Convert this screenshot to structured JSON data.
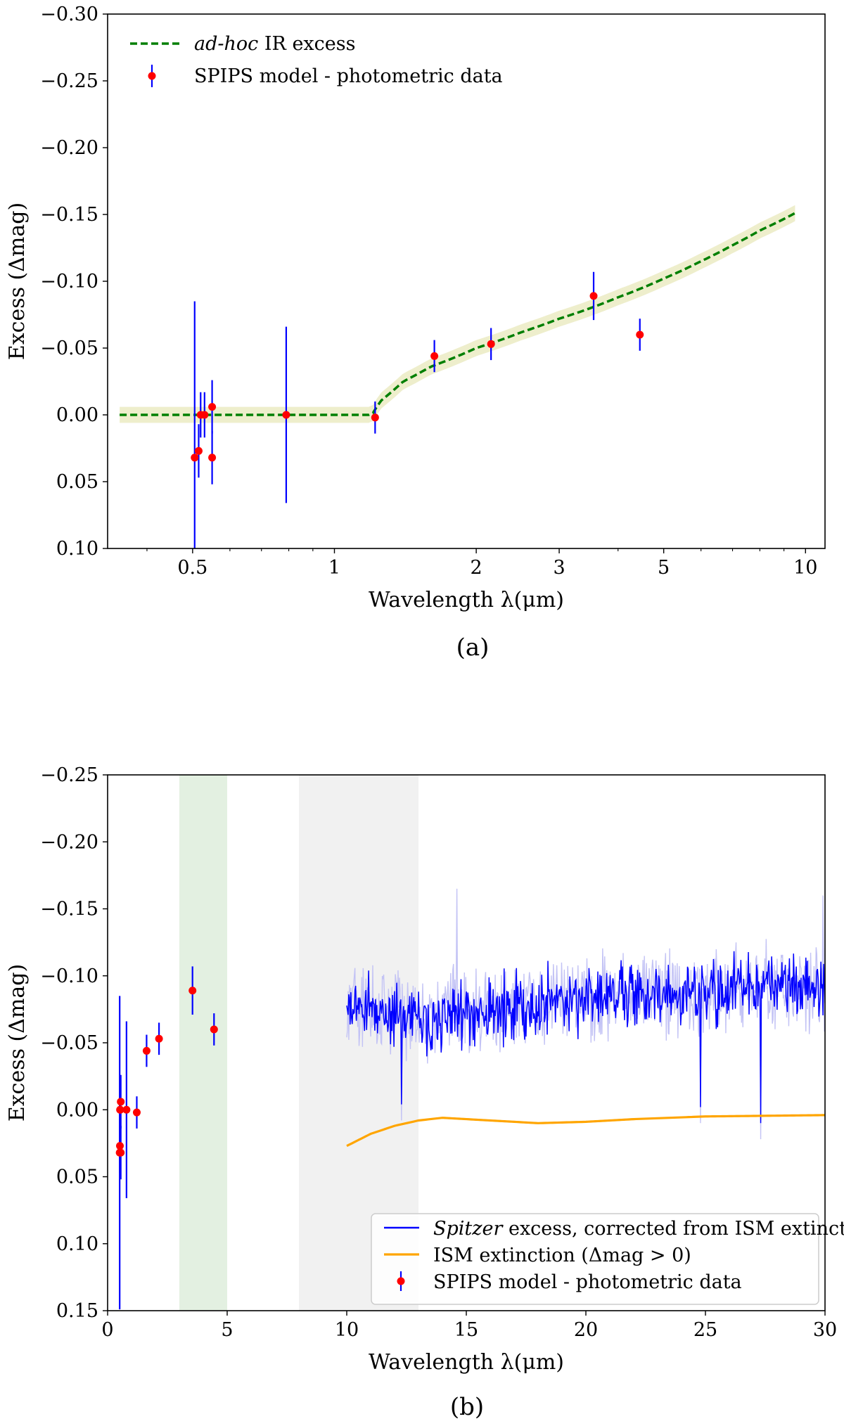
{
  "chart_data": [
    {
      "panel": "a",
      "caption": "(a)",
      "type": "scatter",
      "xscale": "log",
      "xlabel": "Wavelength λ(μm)",
      "ylabel": "Excess (Δmag)",
      "xlim": [
        0.33,
        11.0
      ],
      "ylim": [
        0.1,
        -0.3
      ],
      "y_inverted": true,
      "xticks": [
        0.5,
        1,
        2,
        3,
        5,
        10
      ],
      "xtick_labels": [
        "0.5",
        "1",
        "2",
        "3",
        "5",
        "10"
      ],
      "yticks": [
        -0.3,
        -0.25,
        -0.2,
        -0.15,
        -0.1,
        -0.05,
        0.0,
        0.05,
        0.1
      ],
      "ytick_labels": [
        "−0.30",
        "−0.25",
        "−0.20",
        "−0.15",
        "−0.10",
        "−0.05",
        "0.00",
        "0.05",
        "0.10"
      ],
      "legend_position": "top-left",
      "legend": [
        {
          "label_italic": "ad-hoc",
          "label": " IR excess",
          "style": "dashed-line",
          "color": "#007f00"
        },
        {
          "label": "SPIPS model - photometric data",
          "style": "errorbar-point",
          "color": "#ff0000",
          "errcolor": "#0000ff"
        }
      ],
      "model_curve": {
        "name": "ad-hoc IR excess",
        "color": "#007f00",
        "band_color": "#eeeecc",
        "band_halfwidth": 0.006,
        "x": [
          0.35,
          0.5,
          0.8,
          1.0,
          1.2,
          1.25,
          1.4,
          1.6,
          2.0,
          2.5,
          3.0,
          4.0,
          5.0,
          6.0,
          7.0,
          8.0,
          9.5
        ],
        "y": [
          0.0,
          0.0,
          0.0,
          0.0,
          0.0,
          -0.01,
          -0.025,
          -0.036,
          -0.05,
          -0.062,
          -0.072,
          -0.088,
          -0.102,
          -0.115,
          -0.127,
          -0.138,
          -0.151
        ]
      },
      "points": {
        "name": "SPIPS model - photometric data",
        "x": [
          0.505,
          0.515,
          0.52,
          0.53,
          0.55,
          0.55,
          0.79,
          1.22,
          1.63,
          2.15,
          3.55,
          4.45
        ],
        "y": [
          0.032,
          0.027,
          0.0,
          0.0,
          -0.006,
          0.032,
          0.0,
          0.002,
          -0.044,
          -0.053,
          -0.089,
          -0.06
        ],
        "err": [
          0.117,
          0.02,
          0.017,
          0.017,
          0.02,
          0.02,
          0.066,
          0.012,
          0.012,
          0.012,
          0.018,
          0.012
        ]
      }
    },
    {
      "panel": "b",
      "caption": "(b)",
      "type": "line",
      "xscale": "linear",
      "xlabel": "Wavelength λ(μm)",
      "ylabel": "Excess (Δmag)",
      "xlim": [
        0,
        30
      ],
      "ylim": [
        0.15,
        -0.25
      ],
      "y_inverted": true,
      "xticks": [
        0,
        5,
        10,
        15,
        20,
        25,
        30
      ],
      "xtick_labels": [
        "0",
        "5",
        "10",
        "15",
        "20",
        "25",
        "30"
      ],
      "yticks": [
        -0.25,
        -0.2,
        -0.15,
        -0.1,
        -0.05,
        0.0,
        0.05,
        0.1,
        0.15
      ],
      "ytick_labels": [
        "−0.25",
        "−0.20",
        "−0.15",
        "−0.10",
        "−0.05",
        "0.00",
        "0.05",
        "0.10",
        "0.15"
      ],
      "legend_position": "bottom-right",
      "shaded_regions": [
        {
          "x": [
            3,
            5
          ],
          "color": "#e3f0e1"
        },
        {
          "x": [
            8,
            13
          ],
          "color": "#f1f1f1"
        }
      ],
      "legend": [
        {
          "label_italic": "Spitzer",
          "label": " excess, corrected from ISM extinction",
          "style": "line",
          "color": "#0000ff"
        },
        {
          "label": "ISM extinction (Δmag > 0)",
          "style": "line",
          "color": "#ffa500"
        },
        {
          "label": "SPIPS model - photometric data",
          "style": "errorbar-point",
          "color": "#ff0000",
          "errcolor": "#0000ff"
        }
      ],
      "spitzer_excess": {
        "name": "Spitzer excess, corrected from ISM extinction",
        "color": "#0000ff",
        "band_color": "#c3c3f5",
        "x_range": [
          10.0,
          30.0
        ],
        "n_points": 700,
        "trend_x": [
          10,
          13,
          15,
          17,
          19,
          21,
          23,
          25,
          27,
          30
        ],
        "trend_y": [
          -0.08,
          -0.068,
          -0.072,
          -0.075,
          -0.082,
          -0.085,
          -0.088,
          -0.09,
          -0.092,
          -0.092
        ],
        "noise_amplitude": 0.012,
        "spike_minima": [
          [
            14.6,
            -0.165
          ],
          [
            27.3,
            -0.155
          ],
          [
            29.9,
            -0.16
          ]
        ],
        "spike_maxima": [
          [
            27.3,
            0.022
          ],
          [
            24.8,
            0.01
          ],
          [
            12.3,
            0.008
          ]
        ]
      },
      "ism_extinction": {
        "name": "ISM extinction (Δmag > 0)",
        "color": "#ffa500",
        "x": [
          10,
          11,
          12,
          13,
          14,
          16,
          18,
          20,
          22,
          25,
          30
        ],
        "y": [
          0.027,
          0.018,
          0.012,
          0.008,
          0.006,
          0.008,
          0.01,
          0.009,
          0.007,
          0.005,
          0.004
        ]
      },
      "points": {
        "name": "SPIPS model - photometric data",
        "x": [
          0.505,
          0.515,
          0.52,
          0.53,
          0.55,
          0.55,
          0.79,
          1.22,
          1.63,
          2.15,
          3.55,
          4.45
        ],
        "y": [
          0.032,
          0.027,
          0.0,
          0.0,
          -0.006,
          0.032,
          0.0,
          0.002,
          -0.044,
          -0.053,
          -0.089,
          -0.06
        ],
        "err": [
          0.117,
          0.02,
          0.017,
          0.017,
          0.02,
          0.02,
          0.066,
          0.012,
          0.012,
          0.012,
          0.018,
          0.012
        ]
      }
    }
  ]
}
